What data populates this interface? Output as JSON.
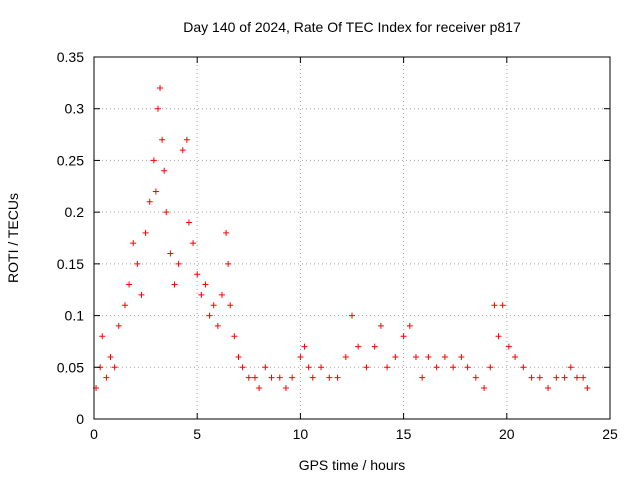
{
  "chart_data": {
    "type": "scatter",
    "title": "Day 140 of 2024, Rate Of TEC Index for receiver p817",
    "xlabel": "GPS time / hours",
    "ylabel": "ROTI / TECUs",
    "xlim": [
      0,
      25
    ],
    "ylim": [
      0,
      0.35
    ],
    "x_ticks": [
      0,
      5,
      10,
      15,
      20,
      25
    ],
    "x_tick_labels": [
      "0",
      "5",
      "10",
      "15",
      "20",
      "25"
    ],
    "y_ticks": [
      0,
      0.05,
      0.1,
      0.15,
      0.2,
      0.25,
      0.3,
      0.35
    ],
    "y_tick_labels": [
      "0",
      "0.05",
      "0.1",
      "0.15",
      "0.2",
      "0.25",
      "0.3",
      "0.35"
    ],
    "grid": true,
    "marker": "+",
    "marker_color": "#ff0000",
    "series": [
      {
        "name": "ROTI",
        "x": [
          0.1,
          0.3,
          0.4,
          0.6,
          0.8,
          1.0,
          1.2,
          1.5,
          1.7,
          1.9,
          2.1,
          2.3,
          2.5,
          2.7,
          2.9,
          3.0,
          3.1,
          3.2,
          3.3,
          3.4,
          3.5,
          3.7,
          3.9,
          4.1,
          4.3,
          4.5,
          4.6,
          4.8,
          5.0,
          5.2,
          5.4,
          5.6,
          5.8,
          6.0,
          6.2,
          6.4,
          6.5,
          6.6,
          6.8,
          7.0,
          7.2,
          7.5,
          7.8,
          8.0,
          8.3,
          8.6,
          9.0,
          9.3,
          9.6,
          10.0,
          10.2,
          10.4,
          10.6,
          11.0,
          11.4,
          11.8,
          12.2,
          12.5,
          12.8,
          13.2,
          13.6,
          13.9,
          14.2,
          14.6,
          15.0,
          15.3,
          15.6,
          15.9,
          16.2,
          16.6,
          17.0,
          17.4,
          17.8,
          18.1,
          18.5,
          18.9,
          19.2,
          19.4,
          19.6,
          19.8,
          20.1,
          20.4,
          20.8,
          21.2,
          21.6,
          22.0,
          22.4,
          22.8,
          23.1,
          23.4,
          23.7,
          23.9
        ],
        "y": [
          0.03,
          0.05,
          0.08,
          0.04,
          0.06,
          0.05,
          0.09,
          0.11,
          0.13,
          0.17,
          0.15,
          0.12,
          0.18,
          0.21,
          0.25,
          0.22,
          0.3,
          0.32,
          0.27,
          0.24,
          0.2,
          0.16,
          0.13,
          0.15,
          0.26,
          0.27,
          0.19,
          0.17,
          0.14,
          0.12,
          0.13,
          0.1,
          0.11,
          0.09,
          0.12,
          0.18,
          0.15,
          0.11,
          0.08,
          0.06,
          0.05,
          0.04,
          0.04,
          0.03,
          0.05,
          0.04,
          0.04,
          0.03,
          0.04,
          0.06,
          0.07,
          0.05,
          0.04,
          0.05,
          0.04,
          0.04,
          0.06,
          0.1,
          0.07,
          0.05,
          0.07,
          0.09,
          0.05,
          0.06,
          0.08,
          0.09,
          0.06,
          0.04,
          0.06,
          0.05,
          0.06,
          0.05,
          0.06,
          0.05,
          0.04,
          0.03,
          0.05,
          0.11,
          0.08,
          0.11,
          0.07,
          0.06,
          0.05,
          0.04,
          0.04,
          0.03,
          0.04,
          0.04,
          0.05,
          0.04,
          0.04,
          0.03
        ]
      }
    ]
  }
}
